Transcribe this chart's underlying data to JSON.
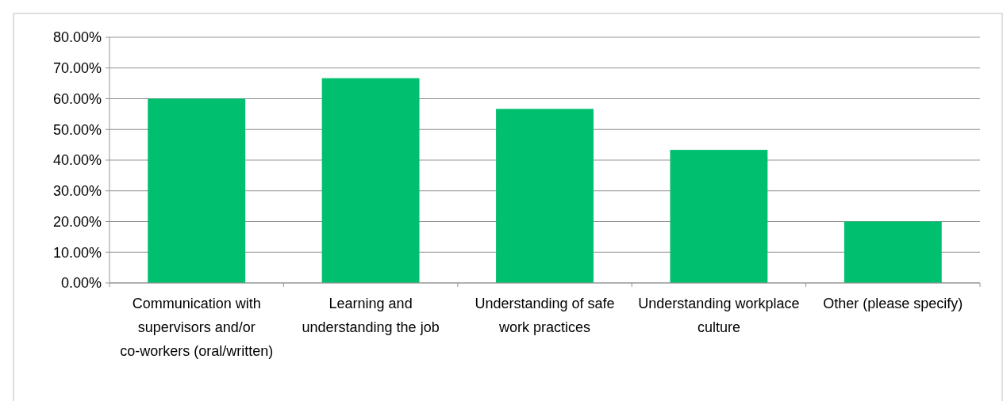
{
  "chart_data": {
    "type": "bar",
    "categories": [
      "Communication with supervisors and/or co-workers (oral/written)",
      "Learning and understanding the job",
      "Understanding of safe work practices",
      "Understanding workplace culture",
      "Other (please specify)"
    ],
    "values": [
      60,
      66.67,
      56.67,
      43.33,
      20
    ],
    "color": "#00bf6f",
    "ylim": [
      0,
      80
    ],
    "yticks": [
      {
        "value": 0,
        "label": "0.00%"
      },
      {
        "value": 10,
        "label": "10.00%"
      },
      {
        "value": 20,
        "label": "20.00%"
      },
      {
        "value": 30,
        "label": "30.00%"
      },
      {
        "value": 40,
        "label": "40.00%"
      },
      {
        "value": 50,
        "label": "50.00%"
      },
      {
        "value": 60,
        "label": "60.00%"
      },
      {
        "value": 70,
        "label": "70.00%"
      },
      {
        "value": 80,
        "label": "80.00%"
      }
    ],
    "grid": "y"
  }
}
